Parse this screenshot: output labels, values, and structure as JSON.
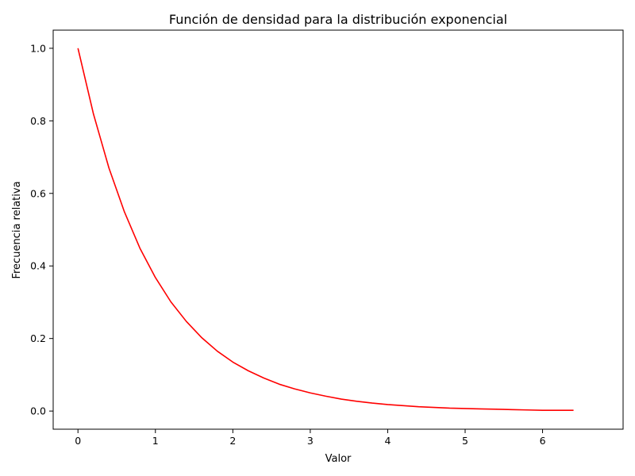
{
  "chart_data": {
    "type": "line",
    "title": "Función de densidad para la distribución exponencial",
    "xlabel": "Valor",
    "ylabel": "Frecuencia relativa",
    "xlim": [
      -0.32,
      7.04
    ],
    "ylim": [
      -0.05,
      1.05
    ],
    "xticks": [
      0,
      1,
      2,
      3,
      4,
      5,
      6
    ],
    "yticks": [
      0.0,
      0.2,
      0.4,
      0.6,
      0.8,
      1.0
    ],
    "xtick_labels": [
      "0",
      "1",
      "2",
      "3",
      "4",
      "5",
      "6"
    ],
    "ytick_labels": [
      "0.0",
      "0.2",
      "0.4",
      "0.6",
      "0.8",
      "1.0"
    ],
    "grid": false,
    "series": [
      {
        "color": "#ff0000",
        "x": [
          0,
          0.2,
          0.4,
          0.6,
          0.8,
          1.0,
          1.2,
          1.4,
          1.6,
          1.8,
          2.0,
          2.2,
          2.4,
          2.6,
          2.8,
          3.0,
          3.2,
          3.4,
          3.6,
          3.8,
          4.0,
          4.2,
          4.4,
          4.6,
          4.8,
          5.0,
          5.2,
          5.4,
          5.6,
          5.8,
          6.0,
          6.2,
          6.4
        ],
        "y": [
          1.0,
          0.819,
          0.67,
          0.549,
          0.449,
          0.368,
          0.301,
          0.247,
          0.202,
          0.165,
          0.135,
          0.111,
          0.091,
          0.074,
          0.061,
          0.05,
          0.041,
          0.033,
          0.027,
          0.022,
          0.018,
          0.015,
          0.012,
          0.01,
          0.008,
          0.007,
          0.006,
          0.005,
          0.004,
          0.003,
          0.002,
          0.002,
          0.002
        ]
      }
    ]
  }
}
